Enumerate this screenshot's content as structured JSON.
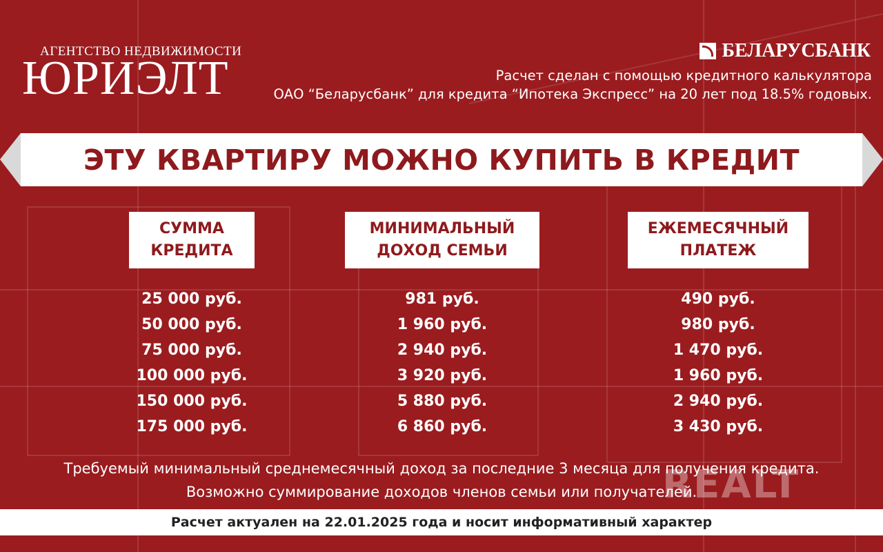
{
  "logo": {
    "subtitle": "АГЕНТСТВО НЕДВИЖИМОСТИ",
    "name": "ЮРИЭЛТ"
  },
  "bank": {
    "name": "БЕЛАРУСБАНК",
    "icon": "belarusbank-logo-icon"
  },
  "calc_note": {
    "line1": "Расчет сделан с помощью кредитного калькулятора",
    "line2": "ОАО “Беларусбанк” для кредита “Ипотека Экспресс” на 20 лет под 18.5% годовых."
  },
  "banner": {
    "title": "ЭТУ КВАРТИРУ МОЖНО КУПИТЬ В КРЕДИТ"
  },
  "table": {
    "columns": [
      {
        "line1": "СУММА",
        "line2": "КРЕДИТА"
      },
      {
        "line1": "МИНИМАЛЬНЫЙ",
        "line2": "ДОХОД СЕМЬИ"
      },
      {
        "line1": "ЕЖЕМЕСЯЧНЫЙ",
        "line2": "ПЛАТЕЖ"
      }
    ],
    "rows": [
      [
        "25 000 руб.",
        "981 руб.",
        "490 руб."
      ],
      [
        "50 000 руб.",
        "1 960 руб.",
        "980 руб."
      ],
      [
        "75 000 руб.",
        "2 940 руб.",
        "1 470 руб."
      ],
      [
        "100 000 руб.",
        "3 920 руб.",
        "1 960 руб."
      ],
      [
        "150 000 руб.",
        "5 880 руб.",
        "2 940 руб."
      ],
      [
        "175 000 руб.",
        "6 860 руб.",
        "3 430 руб."
      ]
    ]
  },
  "note": {
    "line1": "Требуемый минимальный среднемесячный доход за последние 3 месяца для получения кредита.",
    "line2": "Возможно суммирование доходов членов семьи или получателей."
  },
  "watermark": "REALT",
  "footer": "Расчет актуален на 22.01.2025 года и носит информативный характер",
  "colors": {
    "background": "#9a1c1f",
    "accent_text": "#8e1a1d",
    "panel": "#ffffff"
  }
}
